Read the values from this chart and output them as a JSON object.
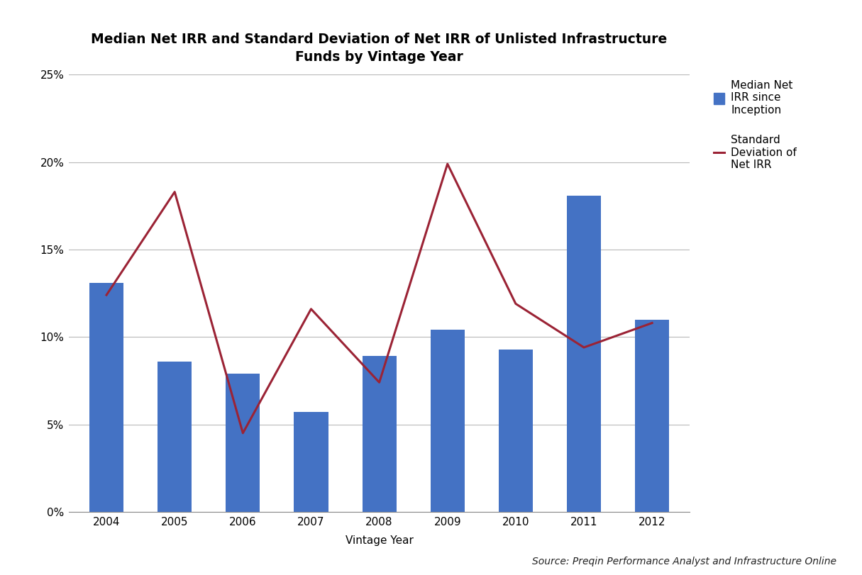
{
  "title": "Median Net IRR and Standard Deviation of Net IRR of Unlisted Infrastructure\nFunds by Vintage Year",
  "xlabel": "Vintage Year",
  "categories": [
    "2004",
    "2005",
    "2006",
    "2007",
    "2008",
    "2009",
    "2010",
    "2011",
    "2012"
  ],
  "bar_values": [
    0.131,
    0.086,
    0.079,
    0.057,
    0.089,
    0.104,
    0.093,
    0.181,
    0.11
  ],
  "line_values": [
    0.124,
    0.183,
    0.045,
    0.116,
    0.074,
    0.199,
    0.119,
    0.094,
    0.108
  ],
  "bar_color": "#4472C4",
  "line_color": "#9B2335",
  "ylim": [
    0,
    0.25
  ],
  "yticks": [
    0.0,
    0.05,
    0.1,
    0.15,
    0.2,
    0.25
  ],
  "ytick_labels": [
    "0%",
    "5%",
    "10%",
    "15%",
    "20%",
    "25%"
  ],
  "legend_bar_label": "Median Net\nIRR since\nInception",
  "legend_line_label": "Standard\nDeviation of\nNet IRR",
  "source_text": "Source: Preqin Performance Analyst and Infrastructure Online",
  "background_color": "#FFFFFF",
  "grid_color": "#B8B8B8",
  "title_fontsize": 13.5,
  "axis_label_fontsize": 11,
  "tick_fontsize": 11,
  "legend_fontsize": 11,
  "source_fontsize": 10,
  "line_width": 2.2,
  "bar_width": 0.5
}
